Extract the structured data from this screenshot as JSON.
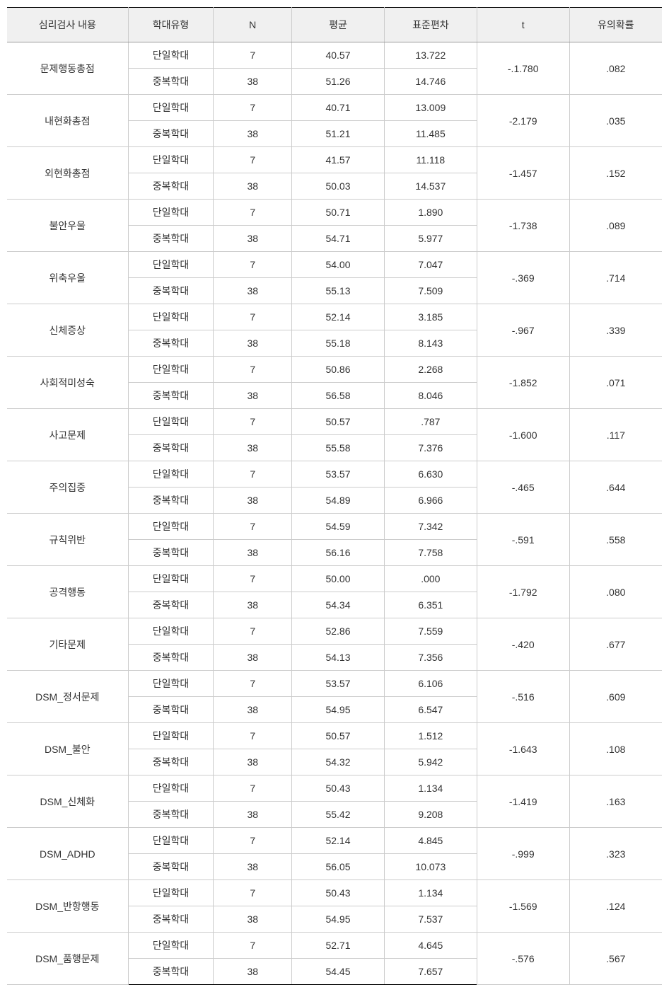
{
  "table": {
    "headers": {
      "test_content": "심리검사 내용",
      "abuse_type": "학대유형",
      "n": "N",
      "mean": "평균",
      "sd": "표준편차",
      "t": "t",
      "p": "유의확률"
    },
    "type_labels": {
      "single": "단일학대",
      "multiple": "중복학대"
    },
    "groups": [
      {
        "label": "문제행동총점",
        "rows": [
          {
            "n": "7",
            "mean": "40.57",
            "sd": "13.722"
          },
          {
            "n": "38",
            "mean": "51.26",
            "sd": "14.746"
          }
        ],
        "t": "-.1.780",
        "p": ".082"
      },
      {
        "label": "내현화총점",
        "rows": [
          {
            "n": "7",
            "mean": "40.71",
            "sd": "13.009"
          },
          {
            "n": "38",
            "mean": "51.21",
            "sd": "11.485"
          }
        ],
        "t": "-2.179",
        "p": ".035"
      },
      {
        "label": "외현화총점",
        "rows": [
          {
            "n": "7",
            "mean": "41.57",
            "sd": "11.118"
          },
          {
            "n": "38",
            "mean": "50.03",
            "sd": "14.537"
          }
        ],
        "t": "-1.457",
        "p": ".152"
      },
      {
        "label": "불안우울",
        "rows": [
          {
            "n": "7",
            "mean": "50.71",
            "sd": "1.890"
          },
          {
            "n": "38",
            "mean": "54.71",
            "sd": "5.977"
          }
        ],
        "t": "-1.738",
        "p": ".089"
      },
      {
        "label": "위축우울",
        "rows": [
          {
            "n": "7",
            "mean": "54.00",
            "sd": "7.047"
          },
          {
            "n": "38",
            "mean": "55.13",
            "sd": "7.509"
          }
        ],
        "t": "-.369",
        "p": ".714"
      },
      {
        "label": "신체증상",
        "rows": [
          {
            "n": "7",
            "mean": "52.14",
            "sd": "3.185"
          },
          {
            "n": "38",
            "mean": "55.18",
            "sd": "8.143"
          }
        ],
        "t": "-.967",
        "p": ".339"
      },
      {
        "label": "사회적미성숙",
        "rows": [
          {
            "n": "7",
            "mean": "50.86",
            "sd": "2.268"
          },
          {
            "n": "38",
            "mean": "56.58",
            "sd": "8.046"
          }
        ],
        "t": "-1.852",
        "p": ".071"
      },
      {
        "label": "사고문제",
        "rows": [
          {
            "n": "7",
            "mean": "50.57",
            "sd": ".787"
          },
          {
            "n": "38",
            "mean": "55.58",
            "sd": "7.376"
          }
        ],
        "t": "-1.600",
        "p": ".117"
      },
      {
        "label": "주의집중",
        "rows": [
          {
            "n": "7",
            "mean": "53.57",
            "sd": "6.630"
          },
          {
            "n": "38",
            "mean": "54.89",
            "sd": "6.966"
          }
        ],
        "t": "-.465",
        "p": ".644"
      },
      {
        "label": "규칙위반",
        "rows": [
          {
            "n": "7",
            "mean": "54.59",
            "sd": "7.342"
          },
          {
            "n": "38",
            "mean": "56.16",
            "sd": "7.758"
          }
        ],
        "t": "-.591",
        "p": ".558"
      },
      {
        "label": "공격행동",
        "rows": [
          {
            "n": "7",
            "mean": "50.00",
            "sd": ".000"
          },
          {
            "n": "38",
            "mean": "54.34",
            "sd": "6.351"
          }
        ],
        "t": "-1.792",
        "p": ".080"
      },
      {
        "label": "기타문제",
        "rows": [
          {
            "n": "7",
            "mean": "52.86",
            "sd": "7.559"
          },
          {
            "n": "38",
            "mean": "54.13",
            "sd": "7.356"
          }
        ],
        "t": "-.420",
        "p": ".677"
      },
      {
        "label": "DSM_정서문제",
        "rows": [
          {
            "n": "7",
            "mean": "53.57",
            "sd": "6.106"
          },
          {
            "n": "38",
            "mean": "54.95",
            "sd": "6.547"
          }
        ],
        "t": "-.516",
        "p": ".609"
      },
      {
        "label": "DSM_불안",
        "rows": [
          {
            "n": "7",
            "mean": "50.57",
            "sd": "1.512"
          },
          {
            "n": "38",
            "mean": "54.32",
            "sd": "5.942"
          }
        ],
        "t": "-1.643",
        "p": ".108"
      },
      {
        "label": "DSM_신체화",
        "rows": [
          {
            "n": "7",
            "mean": "50.43",
            "sd": "1.134"
          },
          {
            "n": "38",
            "mean": "55.42",
            "sd": "9.208"
          }
        ],
        "t": "-1.419",
        "p": ".163"
      },
      {
        "label": "DSM_ADHD",
        "rows": [
          {
            "n": "7",
            "mean": "52.14",
            "sd": "4.845"
          },
          {
            "n": "38",
            "mean": "56.05",
            "sd": "10.073"
          }
        ],
        "t": "-.999",
        "p": ".323"
      },
      {
        "label": "DSM_반항행동",
        "rows": [
          {
            "n": "7",
            "mean": "50.43",
            "sd": "1.134"
          },
          {
            "n": "38",
            "mean": "54.95",
            "sd": "7.537"
          }
        ],
        "t": "-1.569",
        "p": ".124"
      },
      {
        "label": "DSM_품행문제",
        "rows": [
          {
            "n": "7",
            "mean": "52.71",
            "sd": "4.645"
          },
          {
            "n": "38",
            "mean": "54.45",
            "sd": "7.657"
          }
        ],
        "t": "-.576",
        "p": ".567"
      }
    ]
  }
}
